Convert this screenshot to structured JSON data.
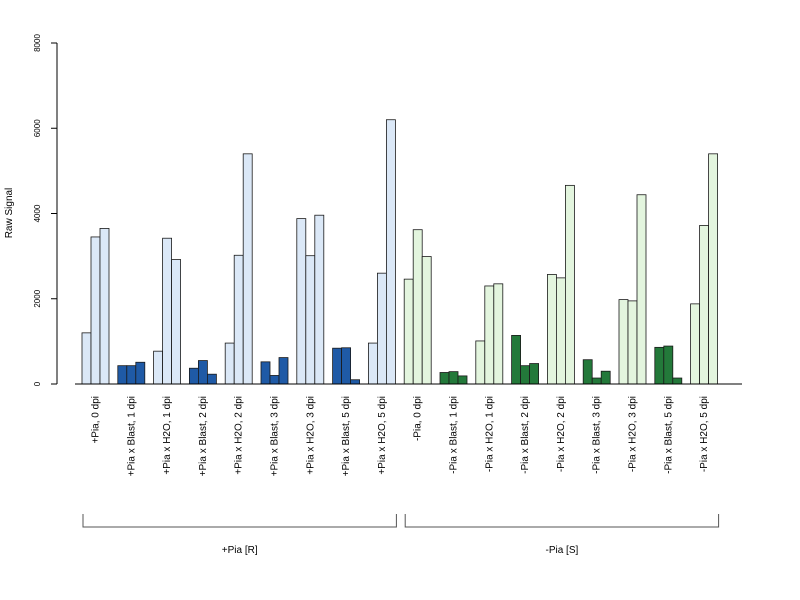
{
  "chart_data": {
    "type": "bar",
    "ylabel": "Raw Signal",
    "ylim": [
      0,
      8000
    ],
    "yticks": [
      0,
      2000,
      4000,
      6000,
      8000
    ],
    "grid": false,
    "legend": "none",
    "categories": [
      "+Pia, 0 dpi",
      "+Pia x Blast, 1 dpi",
      "+Pia x H2O, 1 dpi",
      "+Pia x Blast, 2 dpi",
      "+Pia x H2O, 2 dpi",
      "+Pia x Blast, 3 dpi",
      "+Pia x H2O, 3 dpi",
      "+Pia x Blast, 5 dpi",
      "+Pia x H2O, 5 dpi",
      "-Pia, 0 dpi",
      "-Pia x Blast, 1 dpi",
      "-Pia x H2O, 1 dpi",
      "-Pia x Blast, 2 dpi",
      "-Pia x H2O, 2 dpi",
      "-Pia x Blast, 3 dpi",
      "-Pia x H2O, 3 dpi",
      "-Pia x Blast, 5 dpi",
      "-Pia x H2O, 5 dpi"
    ],
    "replicates": [
      [
        1200,
        3450,
        3650
      ],
      [
        430,
        430,
        510
      ],
      [
        770,
        3420,
        2920
      ],
      [
        370,
        550,
        230
      ],
      [
        960,
        3020,
        5400
      ],
      [
        520,
        200,
        620
      ],
      [
        3880,
        3010,
        3960
      ],
      [
        840,
        850,
        100
      ],
      [
        960,
        2600,
        6200
      ],
      [
        2460,
        3620,
        2990
      ],
      [
        270,
        290,
        190
      ],
      [
        1010,
        2300,
        2350
      ],
      [
        1140,
        430,
        480
      ],
      [
        2570,
        2490,
        4660
      ],
      [
        570,
        140,
        300
      ],
      [
        1980,
        1950,
        4440
      ],
      [
        860,
        890,
        140
      ],
      [
        1880,
        3720,
        5400
      ]
    ],
    "bar_colors": [
      "#dbe8f7",
      "#1f5aa6",
      "#dbe8f7",
      "#1f5aa6",
      "#dbe8f7",
      "#1f5aa6",
      "#dbe8f7",
      "#1f5aa6",
      "#dbe8f7",
      "#e3f5de",
      "#23793a",
      "#e3f5de",
      "#23793a",
      "#e3f5de",
      "#23793a",
      "#e3f5de",
      "#23793a",
      "#e3f5de"
    ],
    "groups": [
      {
        "label": "+Pia [R]",
        "first": 0,
        "last": 8
      },
      {
        "label": "-Pia [S]",
        "first": 9,
        "last": 17
      }
    ]
  }
}
